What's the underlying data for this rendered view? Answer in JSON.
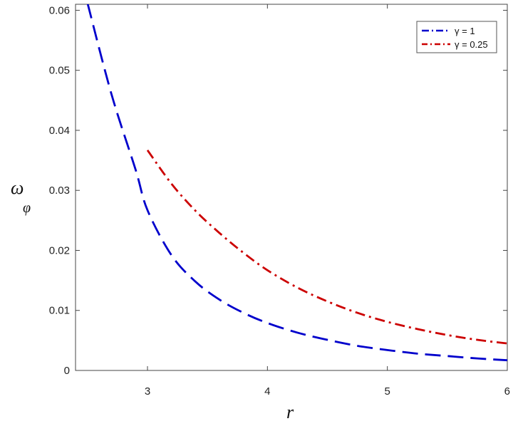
{
  "chart_data": {
    "type": "line",
    "xlabel": "r",
    "ylabel": "ω",
    "ylabel_sub": "φ",
    "xlim": [
      2.4,
      6.0
    ],
    "ylim": [
      0,
      0.061
    ],
    "x_ticks": [
      3,
      4,
      5,
      6
    ],
    "y_ticks": [
      0,
      0.01,
      0.02,
      0.03,
      0.04,
      0.05,
      0.06
    ],
    "x_tick_labels": [
      "3",
      "4",
      "5",
      "6"
    ],
    "y_tick_labels": [
      "0",
      "0.01",
      "0.02",
      "0.03",
      "0.04",
      "0.05",
      "0.06"
    ],
    "grid": false,
    "legend_position": "top-right",
    "series": [
      {
        "name": "γ = 1",
        "color": "#0000cc",
        "style": "dash",
        "x": [
          2.5,
          2.7,
          2.9,
          3.0,
          3.2,
          3.4,
          3.6,
          3.8,
          4.0,
          4.25,
          4.5,
          4.75,
          5.0,
          5.25,
          5.5,
          5.75,
          6.0
        ],
        "y": [
          0.0612,
          0.046,
          0.0335,
          0.0267,
          0.0192,
          0.0148,
          0.0118,
          0.0096,
          0.0079,
          0.0063,
          0.0051,
          0.0041,
          0.0034,
          0.0028,
          0.0024,
          0.002,
          0.0017
        ]
      },
      {
        "name": "γ = 0.25",
        "color": "#cc0000",
        "style": "dashdot",
        "x": [
          3.0,
          3.2,
          3.4,
          3.6,
          3.8,
          4.0,
          4.25,
          4.5,
          4.75,
          5.0,
          5.25,
          5.5,
          5.75,
          6.0
        ],
        "y": [
          0.0367,
          0.0311,
          0.0266,
          0.0229,
          0.0196,
          0.0167,
          0.0138,
          0.0115,
          0.0096,
          0.0081,
          0.0069,
          0.0059,
          0.0051,
          0.0045
        ]
      }
    ]
  }
}
